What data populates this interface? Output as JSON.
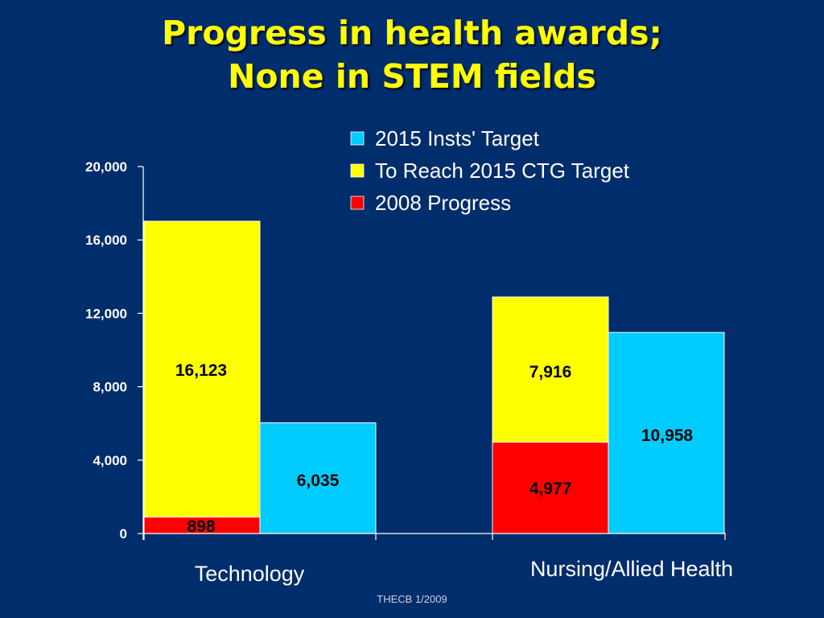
{
  "slide": {
    "title_line1": "Progress in health awards;",
    "title_line2": "None in STEM fields",
    "footer": "THECB 1/2009"
  },
  "colors": {
    "background": "#002d6b",
    "title": "#ffff00",
    "insts_target": "#00ccff",
    "to_reach": "#ffff00",
    "progress_2008": "#ff0000"
  },
  "chart_data": {
    "type": "bar",
    "stacked_partial": true,
    "categories": [
      "Technology",
      "Nursing/Allied Health"
    ],
    "series": [
      {
        "name": "2015 Insts' Target",
        "color": "#00ccff",
        "values": [
          6035,
          10958
        ],
        "stack": "target"
      },
      {
        "name": "To Reach 2015 CTG Target",
        "color": "#ffff00",
        "values": [
          16123,
          7916
        ],
        "stack": "ctg"
      },
      {
        "name": "2008 Progress",
        "color": "#ff0000",
        "values": [
          898,
          4977
        ],
        "stack": "ctg"
      }
    ],
    "yticks": [
      "0",
      "4,000",
      "8,000",
      "12,000",
      "16,000",
      "20,000"
    ],
    "ylim": [
      0,
      20000
    ],
    "data_labels": {
      "2015 Insts' Target": [
        "6,035",
        "10,958"
      ],
      "To Reach 2015 CTG Target": [
        "16,123",
        "7,916"
      ],
      "2008 Progress": [
        "898",
        "4,977"
      ]
    },
    "legend_position": "top-right",
    "grid": false
  }
}
